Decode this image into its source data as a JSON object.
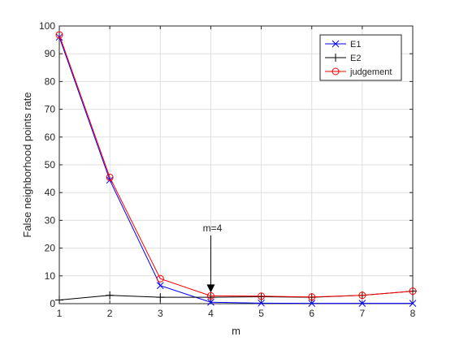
{
  "chart_data": {
    "type": "line",
    "title": "",
    "xlabel": "m",
    "ylabel": "False neighborhood points rate",
    "xlim": [
      1,
      8
    ],
    "ylim": [
      0,
      100
    ],
    "xticks": [
      1,
      2,
      3,
      4,
      5,
      6,
      7,
      8
    ],
    "yticks": [
      0,
      10,
      20,
      30,
      40,
      50,
      60,
      70,
      80,
      90,
      100
    ],
    "grid": true,
    "legend_position": "top-right",
    "x": [
      1,
      2,
      3,
      4,
      5,
      6,
      7,
      8
    ],
    "series": [
      {
        "name": "E1",
        "color": "#0000ff",
        "marker": "x",
        "values": [
          96,
          44.5,
          6.5,
          0.5,
          0.2,
          0.1,
          0.1,
          0.1
        ]
      },
      {
        "name": "E2",
        "color": "#000000",
        "marker": "+",
        "values": [
          1.3,
          3.0,
          2.3,
          2.3,
          2.5,
          2.3,
          3.0,
          4.5
        ]
      },
      {
        "name": "judgement",
        "color": "#ff0000",
        "marker": "o",
        "values": [
          96.8,
          45.5,
          9.0,
          2.8,
          2.7,
          2.4,
          3.0,
          4.5
        ]
      }
    ],
    "annotation": {
      "text": "m=4",
      "x": 4,
      "y": 2.8
    }
  }
}
